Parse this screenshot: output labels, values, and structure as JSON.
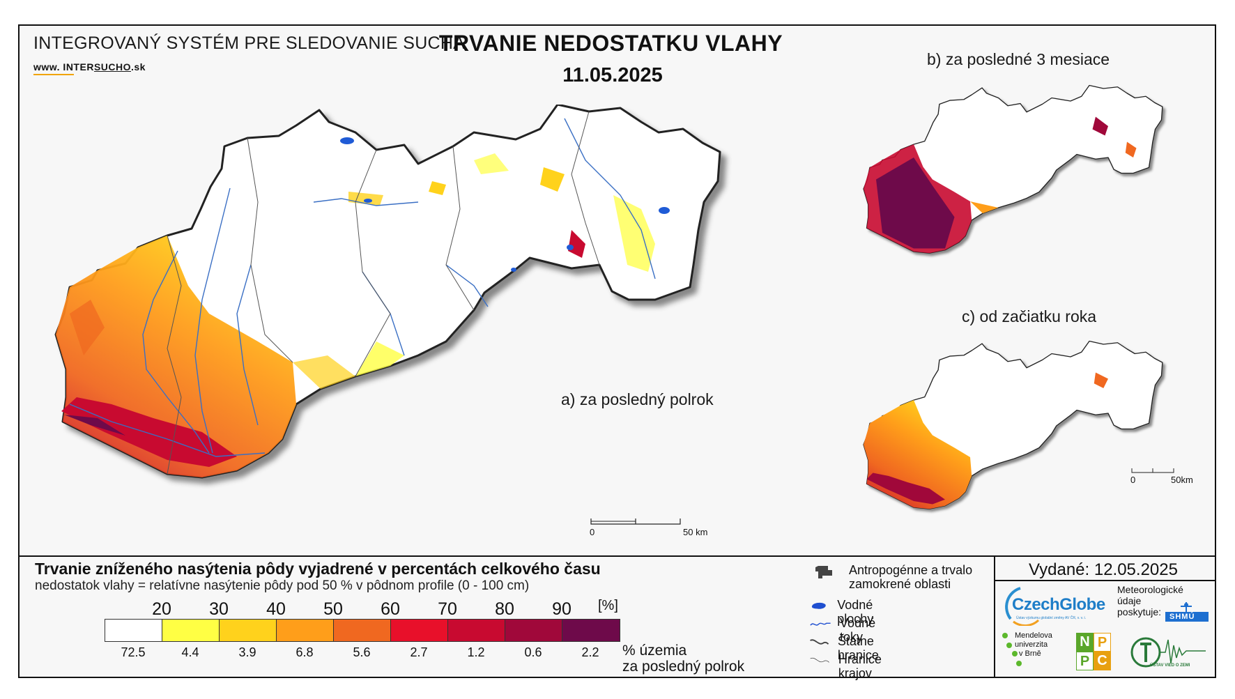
{
  "header": {
    "system_name": "INTEGROVANÝ SYSTÉM PRE SLEDOVANIE SUCHA",
    "website_prefix": "www. INTER",
    "website_brand": "SUCHO",
    "website_suffix": ".sk",
    "title": "TRVANIE NEDOSTATKU VLAHY",
    "date": "11.05.2025"
  },
  "panels": {
    "a": {
      "label": "a) za posledný polrok"
    },
    "b": {
      "label": "b) za posledné 3 mesiace"
    },
    "c": {
      "label": "c) od začiatku roka"
    }
  },
  "scalebar_main": {
    "start": "0",
    "end": "50 km"
  },
  "scalebar_small": {
    "start": "0",
    "end": "50km"
  },
  "legend": {
    "title": "Trvanie zníženého nasýtenia pôdy vyjadrené v percentách celkového času",
    "subtitle": "nedostatok vlahy = relatívne nasýtenie pôdy pod 50 % v pôdnom profile (0 - 100 cm)",
    "unit": "[%]",
    "thresholds": [
      "20",
      "30",
      "40",
      "50",
      "60",
      "70",
      "80",
      "90"
    ],
    "colors": [
      "#ffffff",
      "#ffff44",
      "#ffd21c",
      "#ff9e1a",
      "#f06820",
      "#e8102a",
      "#c80a30",
      "#a0083a",
      "#6e0a4a"
    ],
    "percent_of_territory": [
      "72.5",
      "4.4",
      "3.9",
      "6.8",
      "5.6",
      "2.7",
      "1.2",
      "0.6",
      "2.2"
    ],
    "percent_caption_line1": "% územia",
    "percent_caption_line2": "za posledný polrok"
  },
  "symbols": {
    "anthropogenic": "Antropogénne a trvalo zamokrené oblasti",
    "water_bodies": "Vodné plochy",
    "rivers": "Vodné toky",
    "state_border": "Štátne hranice",
    "region_border": "Hranice krajov"
  },
  "issued": "Vydané: 12.05.2025",
  "orgs": {
    "czechglobe": "CzechGlobe",
    "czechglobe_sub": "Ústav výzkumu globální změny AV ČR, v. v. i.",
    "meteo_note": "Meteorologické údaje poskytuje:",
    "shmu": "SHMÚ",
    "mendel_1": "Mendelova",
    "mendel_2": "univerzita",
    "mendel_3": "v Brně",
    "nppc": [
      "N",
      "P",
      "P",
      "C"
    ],
    "uvz": "ÚSTAV VIED O ZEMI"
  }
}
